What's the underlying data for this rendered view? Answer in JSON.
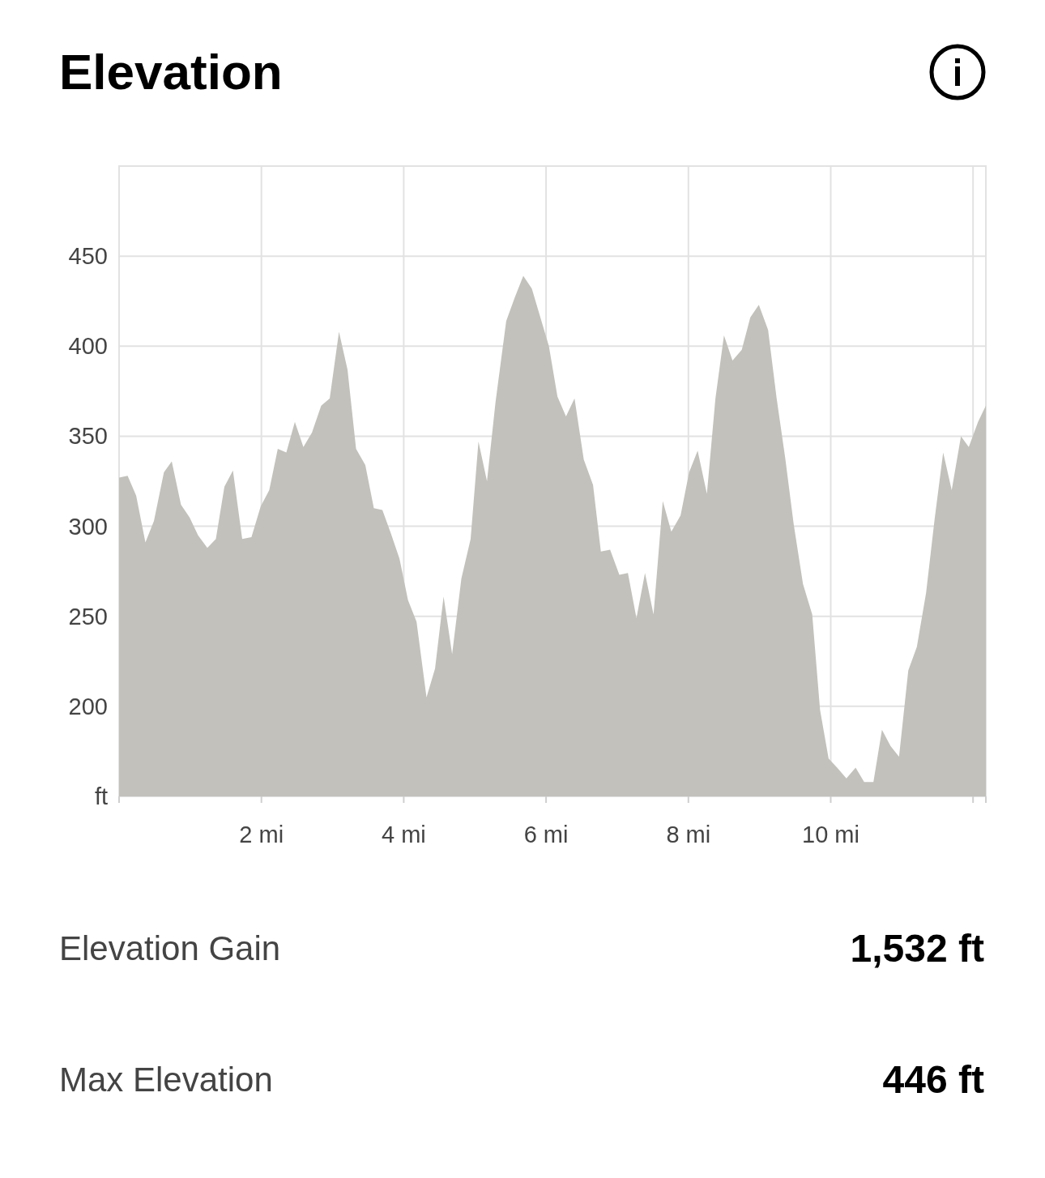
{
  "chart_data": {
    "type": "area",
    "title": "Elevation",
    "x": [
      0,
      0.12,
      0.24,
      0.37,
      0.49,
      0.63,
      0.74,
      0.87,
      0.99,
      1.11,
      1.24,
      1.36,
      1.48,
      1.6,
      1.73,
      1.86,
      1.99,
      2.11,
      2.23,
      2.35,
      2.47,
      2.59,
      2.71,
      2.84,
      2.96,
      3.09,
      3.21,
      3.33,
      3.46,
      3.58,
      3.7,
      3.82,
      3.94,
      4.06,
      4.18,
      4.32,
      4.44,
      4.56,
      4.68,
      4.81,
      4.94,
      5.05,
      5.17,
      5.29,
      5.44,
      5.56,
      5.68,
      5.8,
      5.92,
      6.04,
      6.16,
      6.28,
      6.4,
      6.53,
      6.66,
      6.77,
      6.9,
      7.03,
      7.15,
      7.27,
      7.39,
      7.51,
      7.64,
      7.76,
      7.89,
      8.01,
      8.13,
      8.26,
      8.38,
      8.5,
      8.62,
      8.75,
      8.87,
      8.99,
      9.12,
      9.24,
      9.36,
      9.48,
      9.61,
      9.74,
      9.85,
      9.97,
      10.09,
      10.22,
      10.35,
      10.47,
      10.6,
      10.72,
      10.84,
      10.96,
      11.09,
      11.21,
      11.34,
      11.46,
      11.58,
      11.7,
      11.83,
      11.94,
      12.07,
      12.18
    ],
    "series": [
      {
        "color": "#c2c1bc",
        "values": [
          327,
          328,
          317,
          291,
          303,
          330,
          336,
          312,
          305,
          295,
          288,
          293,
          322,
          331,
          293,
          294,
          311,
          320,
          343,
          341,
          358,
          344,
          352,
          367,
          371,
          408,
          387,
          343,
          334,
          310,
          309,
          296,
          282,
          259,
          247,
          205,
          221,
          261,
          229,
          271,
          293,
          347,
          325,
          369,
          414,
          427,
          439,
          432,
          416,
          400,
          372,
          361,
          371,
          337,
          323,
          286,
          287,
          273,
          274,
          249,
          274,
          251,
          314,
          297,
          306,
          330,
          342,
          318,
          371,
          406,
          392,
          398,
          416,
          423,
          409,
          371,
          338,
          301,
          268,
          251,
          198,
          171,
          166,
          160,
          166,
          158,
          158,
          187,
          178,
          172,
          220,
          233,
          263,
          304,
          341,
          320,
          350,
          344,
          358,
          367
        ]
      }
    ],
    "xlim": [
      0,
      12.18
    ],
    "xticks": [
      {
        "value": 0,
        "label": null
      },
      {
        "value": 2,
        "label": "2 mi"
      },
      {
        "value": 4,
        "label": "4 mi"
      },
      {
        "value": 6,
        "label": "6 mi"
      },
      {
        "value": 8,
        "label": "8 mi"
      },
      {
        "value": 10,
        "label": "10 mi"
      },
      {
        "value": 12,
        "label": null
      }
    ],
    "ylim": [
      150,
      500
    ],
    "yticks": [
      {
        "value": 150,
        "label": "ft"
      },
      200,
      250,
      300,
      350,
      400,
      450
    ],
    "grid": true,
    "annotations": [
      "Elevation Gain",
      "1,532 ft",
      "Max Elevation",
      "446 ft"
    ]
  }
}
